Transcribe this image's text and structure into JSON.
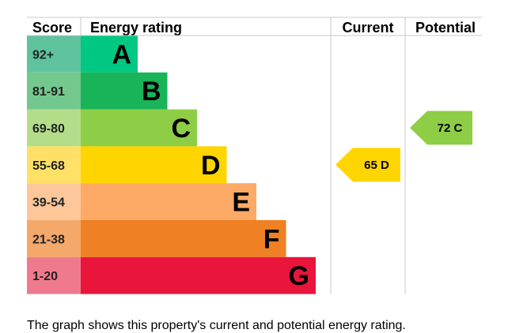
{
  "chart_data": {
    "type": "bar",
    "headers": {
      "score": "Score",
      "rating": "Energy rating",
      "current": "Current",
      "potential": "Potential"
    },
    "bands": [
      {
        "score": "92+",
        "letter": "A",
        "color": "#00c781",
        "score_bg": "#5fc39e",
        "length": 1
      },
      {
        "score": "81-91",
        "letter": "B",
        "color": "#19b459",
        "score_bg": "#72c88d",
        "length": 2
      },
      {
        "score": "69-80",
        "letter": "C",
        "color": "#8dce46",
        "score_bg": "#b4dd8a",
        "length": 3
      },
      {
        "score": "55-68",
        "letter": "D",
        "color": "#ffd500",
        "score_bg": "#ffe066",
        "length": 4
      },
      {
        "score": "39-54",
        "letter": "E",
        "color": "#fcaa65",
        "score_bg": "#fdc79a",
        "length": 5
      },
      {
        "score": "21-38",
        "letter": "F",
        "color": "#ef8023",
        "score_bg": "#f4a869",
        "length": 6
      },
      {
        "score": "1-20",
        "letter": "G",
        "color": "#e9153b",
        "score_bg": "#f07a8d",
        "length": 7
      }
    ],
    "current": {
      "value": 65,
      "band": "D",
      "label": "65  D",
      "color": "#ffd500"
    },
    "potential": {
      "value": 72,
      "band": "C",
      "label": "72  C",
      "color": "#8dce46"
    }
  },
  "footer": {
    "text": "The graph shows this property's current and potential energy rating."
  }
}
